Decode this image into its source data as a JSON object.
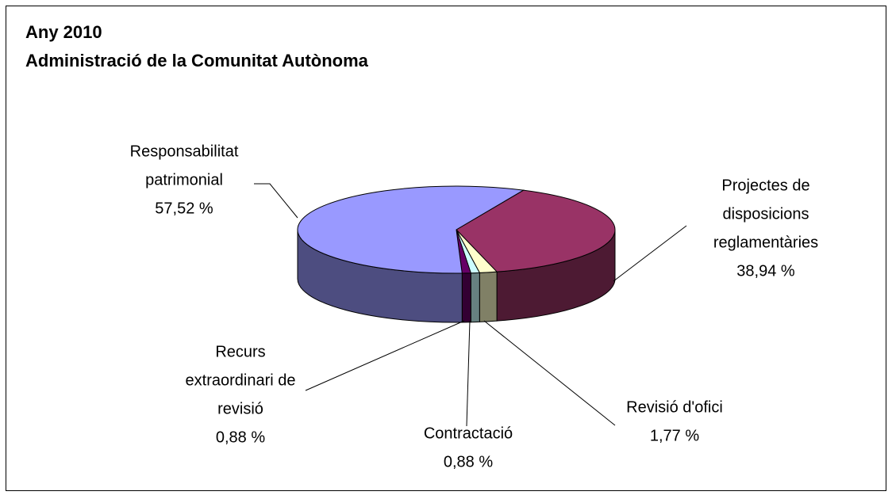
{
  "chart_data": {
    "type": "pie3d",
    "title": "Any 2010",
    "subtitle": "Administració de la Comunitat Autònoma",
    "categories": [
      [
        "Projectes de",
        "disposicions",
        "reglamentàries"
      ],
      [
        "Revisió d'ofici"
      ],
      [
        "Contractació"
      ],
      [
        "Recurs",
        "extraordinari de",
        "revisió"
      ],
      [
        "Responsabilitat",
        "patrimonial"
      ]
    ],
    "values": [
      38.94,
      1.77,
      0.88,
      0.88,
      57.52
    ],
    "value_labels": [
      "38,94 %",
      "1,77 %",
      "0,88 %",
      "0,88 %",
      "57,52 %"
    ],
    "colors": [
      "#993366",
      "#ffffcc",
      "#ccffff",
      "#660066",
      "#9999ff"
    ]
  }
}
